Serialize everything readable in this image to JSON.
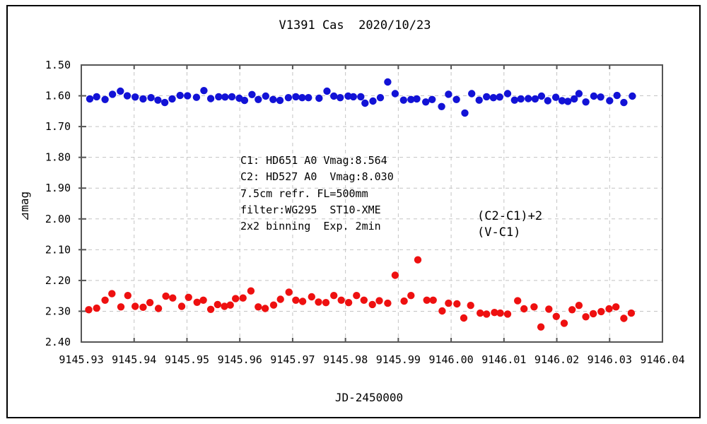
{
  "window": {
    "background": "#ffffff",
    "border_color": "#000000"
  },
  "chart_data": {
    "type": "scatter",
    "title": "V1391 Cas  2020/10/23",
    "xlabel": "JD-2450000",
    "ylabel": "⊿mag",
    "xlim": [
      9145.93,
      9146.04
    ],
    "ylim": [
      1.5,
      2.4
    ],
    "y_axis_direction": "inverted-magnitude-down",
    "grid": true,
    "grid_color": "#c4c4c4",
    "frame_color": "#555555",
    "x_ticks": [
      9145.93,
      9145.94,
      9145.95,
      9145.96,
      9145.97,
      9145.98,
      9145.99,
      9146.0,
      9146.01,
      9146.02,
      9146.03,
      9146.04
    ],
    "y_ticks": [
      1.5,
      1.6,
      1.7,
      1.8,
      1.9,
      2.0,
      2.1,
      2.2,
      2.3,
      2.4
    ],
    "annotation_lines": [
      "C1: HD651 A0 Vmag:8.564",
      "C2: HD527 A0  Vmag:8.030",
      "7.5cm refr. FL=500mm",
      "filter:WG295  ST10-XME",
      "2x2 binning  Exp. 2min"
    ],
    "legend": {
      "position": "right-center",
      "items": [
        {
          "label": "(C2-C1)+2",
          "color": "#1212d6"
        },
        {
          "label": "(V-C1)",
          "color": "#ee1010"
        }
      ]
    },
    "series": [
      {
        "name": "(C2-C1)+2",
        "color": "#1212d6",
        "points": [
          [
            9145.9316,
            1.61
          ],
          [
            9145.9329,
            1.603
          ],
          [
            9145.9345,
            1.612
          ],
          [
            9145.9359,
            1.595
          ],
          [
            9145.9374,
            1.585
          ],
          [
            9145.9387,
            1.6
          ],
          [
            9145.9402,
            1.604
          ],
          [
            9145.9417,
            1.61
          ],
          [
            9145.9432,
            1.606
          ],
          [
            9145.9445,
            1.614
          ],
          [
            9145.9458,
            1.622
          ],
          [
            9145.9472,
            1.61
          ],
          [
            9145.9487,
            1.599
          ],
          [
            9145.9501,
            1.6
          ],
          [
            9145.9518,
            1.605
          ],
          [
            9145.9532,
            1.583
          ],
          [
            9145.9545,
            1.609
          ],
          [
            9145.956,
            1.603
          ],
          [
            9145.9572,
            1.604
          ],
          [
            9145.9585,
            1.603
          ],
          [
            9145.9599,
            1.608
          ],
          [
            9145.9609,
            1.615
          ],
          [
            9145.9623,
            1.596
          ],
          [
            9145.9635,
            1.612
          ],
          [
            9145.9649,
            1.601
          ],
          [
            9145.9663,
            1.612
          ],
          [
            9145.9676,
            1.615
          ],
          [
            9145.9692,
            1.606
          ],
          [
            9145.9706,
            1.603
          ],
          [
            9145.9718,
            1.606
          ],
          [
            9145.973,
            1.606
          ],
          [
            9145.975,
            1.608
          ],
          [
            9145.9765,
            1.585
          ],
          [
            9145.9778,
            1.601
          ],
          [
            9145.979,
            1.606
          ],
          [
            9145.9805,
            1.601
          ],
          [
            9145.9815,
            1.603
          ],
          [
            9145.9829,
            1.603
          ],
          [
            9145.9837,
            1.624
          ],
          [
            9145.9852,
            1.617
          ],
          [
            9145.9866,
            1.606
          ],
          [
            9145.988,
            1.555
          ],
          [
            9145.9894,
            1.593
          ],
          [
            9145.991,
            1.614
          ],
          [
            9145.9924,
            1.612
          ],
          [
            9145.9935,
            1.61
          ],
          [
            9145.9952,
            1.62
          ],
          [
            9145.9964,
            1.612
          ],
          [
            9145.9982,
            1.635
          ],
          [
            9145.9995,
            1.595
          ],
          [
            9146.001,
            1.612
          ],
          [
            9146.0026,
            1.656
          ],
          [
            9146.0039,
            1.593
          ],
          [
            9146.0053,
            1.614
          ],
          [
            9146.0067,
            1.603
          ],
          [
            9146.008,
            1.606
          ],
          [
            9146.0092,
            1.604
          ],
          [
            9146.0107,
            1.593
          ],
          [
            9146.012,
            1.614
          ],
          [
            9146.0132,
            1.61
          ],
          [
            9146.0146,
            1.609
          ],
          [
            9146.0159,
            1.61
          ],
          [
            9146.0171,
            1.601
          ],
          [
            9146.0183,
            1.616
          ],
          [
            9146.0198,
            1.605
          ],
          [
            9146.021,
            1.616
          ],
          [
            9146.0221,
            1.618
          ],
          [
            9146.0233,
            1.61
          ],
          [
            9146.0242,
            1.593
          ],
          [
            9146.0255,
            1.62
          ],
          [
            9146.027,
            1.601
          ],
          [
            9146.0283,
            1.604
          ],
          [
            9146.03,
            1.616
          ],
          [
            9146.0314,
            1.599
          ],
          [
            9146.0327,
            1.622
          ],
          [
            9146.0343,
            1.601
          ]
        ]
      },
      {
        "name": "(V-C1)",
        "color": "#ee1010",
        "points": [
          [
            9145.9314,
            2.295
          ],
          [
            9145.9329,
            2.29
          ],
          [
            9145.9345,
            2.264
          ],
          [
            9145.9358,
            2.243
          ],
          [
            9145.9375,
            2.286
          ],
          [
            9145.9388,
            2.249
          ],
          [
            9145.9402,
            2.284
          ],
          [
            9145.9417,
            2.287
          ],
          [
            9145.943,
            2.272
          ],
          [
            9145.9446,
            2.291
          ],
          [
            9145.946,
            2.251
          ],
          [
            9145.9473,
            2.257
          ],
          [
            9145.949,
            2.284
          ],
          [
            9145.9503,
            2.255
          ],
          [
            9145.9519,
            2.271
          ],
          [
            9145.9531,
            2.264
          ],
          [
            9145.9545,
            2.294
          ],
          [
            9145.9558,
            2.278
          ],
          [
            9145.9571,
            2.284
          ],
          [
            9145.9582,
            2.28
          ],
          [
            9145.9592,
            2.259
          ],
          [
            9145.9606,
            2.257
          ],
          [
            9145.9621,
            2.234
          ],
          [
            9145.9635,
            2.286
          ],
          [
            9145.9648,
            2.291
          ],
          [
            9145.9664,
            2.28
          ],
          [
            9145.9677,
            2.261
          ],
          [
            9145.9693,
            2.238
          ],
          [
            9145.9706,
            2.264
          ],
          [
            9145.9719,
            2.268
          ],
          [
            9145.9736,
            2.253
          ],
          [
            9145.9749,
            2.27
          ],
          [
            9145.9763,
            2.272
          ],
          [
            9145.9778,
            2.249
          ],
          [
            9145.9792,
            2.264
          ],
          [
            9145.9806,
            2.272
          ],
          [
            9145.9821,
            2.249
          ],
          [
            9145.9835,
            2.264
          ],
          [
            9145.9851,
            2.278
          ],
          [
            9145.9864,
            2.266
          ],
          [
            9145.988,
            2.274
          ],
          [
            9145.9894,
            2.183
          ],
          [
            9145.9911,
            2.267
          ],
          [
            9145.9924,
            2.249
          ],
          [
            9145.9937,
            2.133
          ],
          [
            9145.9954,
            2.264
          ],
          [
            9145.9966,
            2.264
          ],
          [
            9145.9983,
            2.299
          ],
          [
            9145.9995,
            2.274
          ],
          [
            9146.0011,
            2.276
          ],
          [
            9146.0024,
            2.322
          ],
          [
            9146.0037,
            2.281
          ],
          [
            9146.0055,
            2.306
          ],
          [
            9146.0067,
            2.309
          ],
          [
            9146.0082,
            2.304
          ],
          [
            9146.0093,
            2.306
          ],
          [
            9146.0107,
            2.309
          ],
          [
            9146.0126,
            2.266
          ],
          [
            9146.0138,
            2.292
          ],
          [
            9146.0157,
            2.286
          ],
          [
            9146.017,
            2.351
          ],
          [
            9146.0185,
            2.293
          ],
          [
            9146.0199,
            2.317
          ],
          [
            9146.0214,
            2.339
          ],
          [
            9146.0229,
            2.295
          ],
          [
            9146.0242,
            2.281
          ],
          [
            9146.0255,
            2.318
          ],
          [
            9146.0269,
            2.308
          ],
          [
            9146.0284,
            2.301
          ],
          [
            9146.0299,
            2.292
          ],
          [
            9146.0312,
            2.286
          ],
          [
            9146.0327,
            2.323
          ],
          [
            9146.0341,
            2.306
          ]
        ]
      }
    ]
  }
}
